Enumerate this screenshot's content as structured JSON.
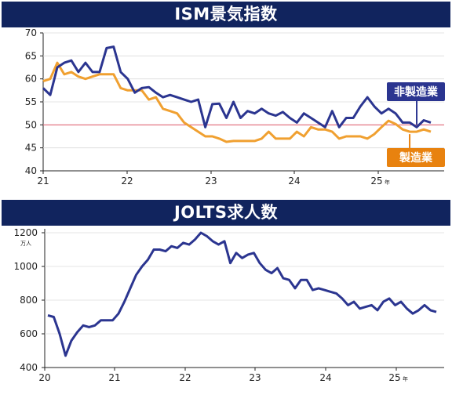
{
  "chart_data": [
    {
      "type": "line",
      "title": "ISM景気指数",
      "y_ticks": [
        "70",
        "65",
        "60",
        "55",
        "50",
        "45",
        "40"
      ],
      "ylim": [
        40,
        70
      ],
      "x_tick_labels": [
        "21",
        "22",
        "23",
        "24",
        "25年"
      ],
      "reference_line": 50,
      "grid": true,
      "series": [
        {
          "name": "非製造業",
          "color": "#2b3590",
          "values": [
            58.0,
            56.5,
            62.5,
            63.5,
            64.0,
            61.5,
            63.5,
            61.5,
            61.5,
            66.7,
            67.0,
            61.5,
            60.0,
            57.0,
            58.0,
            58.2,
            57.0,
            56.0,
            56.5,
            56.0,
            55.5,
            55.0,
            55.5,
            49.5,
            54.5,
            54.6,
            51.5,
            55.0,
            51.5,
            53.0,
            52.5,
            53.5,
            52.5,
            52.0,
            52.8,
            51.5,
            50.5,
            52.5,
            51.5,
            50.5,
            49.5,
            53.0,
            49.5,
            51.5,
            51.5,
            54.0,
            56.0,
            54.0,
            52.5,
            53.5,
            52.5,
            50.5,
            50.5,
            49.5,
            51.0,
            50.5
          ]
        },
        {
          "name": "製造業",
          "color": "#f0a030",
          "values": [
            59.5,
            60.0,
            63.5,
            61.0,
            61.5,
            60.5,
            60.0,
            60.5,
            61.0,
            61.0,
            61.0,
            58.0,
            57.5,
            57.5,
            57.5,
            55.5,
            56.0,
            53.5,
            53.0,
            52.5,
            50.5,
            49.5,
            48.5,
            47.5,
            47.5,
            47.0,
            46.3,
            46.5,
            46.5,
            46.5,
            46.5,
            47.0,
            48.5,
            47.0,
            47.0,
            47.0,
            48.5,
            47.5,
            49.5,
            49.0,
            49.0,
            48.5,
            47.0,
            47.5,
            47.5,
            47.5,
            47.0,
            48.0,
            49.5,
            50.9,
            50.2,
            49.0,
            48.5,
            48.5,
            49.0,
            48.5
          ]
        }
      ]
    },
    {
      "type": "line",
      "title": "JOLTS求人数",
      "y_ticks": [
        "1200",
        "1000",
        "800",
        "600",
        "400"
      ],
      "unit": "万人",
      "ylim": [
        400,
        1200
      ],
      "x_tick_labels": [
        "20",
        "21",
        "22",
        "23",
        "24",
        "25年"
      ],
      "series": [
        {
          "color": "#2b3590",
          "values": [
            710,
            700,
            600,
            470,
            560,
            610,
            650,
            640,
            650,
            680,
            680,
            680,
            720,
            790,
            870,
            950,
            1000,
            1040,
            1100,
            1100,
            1090,
            1120,
            1110,
            1140,
            1130,
            1160,
            1200,
            1180,
            1150,
            1130,
            1150,
            1020,
            1080,
            1050,
            1070,
            1080,
            1020,
            980,
            960,
            990,
            930,
            920,
            870,
            920,
            920,
            860,
            870,
            860,
            850,
            840,
            810,
            770,
            790,
            750,
            760,
            770,
            740,
            790,
            810,
            770,
            790,
            750,
            720,
            740,
            770,
            740,
            730
          ]
        }
      ]
    }
  ]
}
